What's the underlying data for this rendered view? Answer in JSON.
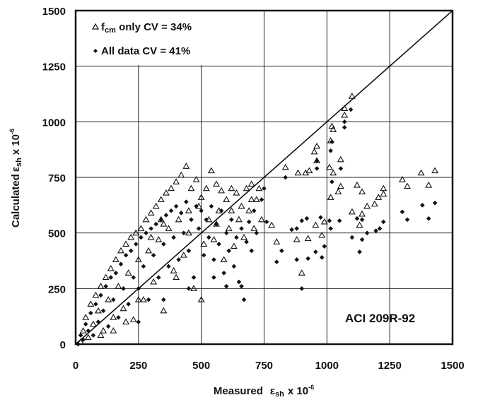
{
  "chart_data": {
    "type": "scatter",
    "title": "",
    "xlabel": {
      "main": "Measured",
      "symbol": "ε",
      "sub": "sh",
      "suffix": "x 10",
      "exp": "-6"
    },
    "ylabel": {
      "main": "Calculated",
      "symbol": "ε",
      "sub": "sh",
      "suffix": "x 10",
      "exp": "-6"
    },
    "xlim": [
      0,
      1500
    ],
    "ylim": [
      0,
      1500
    ],
    "xticks": [
      "0",
      "250",
      "500",
      "750",
      "1000",
      "1250",
      "1500"
    ],
    "yticks": [
      "0",
      "250",
      "500",
      "750",
      "1000",
      "1250",
      "1500"
    ],
    "grid": true,
    "reference_line": "y = x",
    "legend_position": "top-left",
    "legend": [
      {
        "marker": "open-triangle",
        "prefix": "f",
        "sub": "cm",
        "text": " only CV = 34%"
      },
      {
        "marker": "filled-diamond",
        "prefix": "",
        "sub": "",
        "text": "All data CV = 41%"
      }
    ],
    "annotation": "ACI 209R-92",
    "colors": {
      "ink": "#111111",
      "background": "#ffffff"
    },
    "series": [
      {
        "name": "fcm only CV = 34%",
        "marker": "open-triangle",
        "points": [
          [
            20,
            10
          ],
          [
            30,
            60
          ],
          [
            40,
            120
          ],
          [
            50,
            30
          ],
          [
            60,
            180
          ],
          [
            70,
            90
          ],
          [
            80,
            220
          ],
          [
            90,
            150
          ],
          [
            100,
            260
          ],
          [
            110,
            60
          ],
          [
            120,
            300
          ],
          [
            130,
            200
          ],
          [
            140,
            340
          ],
          [
            150,
            120
          ],
          [
            160,
            380
          ],
          [
            170,
            260
          ],
          [
            180,
            420
          ],
          [
            190,
            160
          ],
          [
            200,
            450
          ],
          [
            210,
            320
          ],
          [
            220,
            480
          ],
          [
            230,
            110
          ],
          [
            240,
            500
          ],
          [
            250,
            380
          ],
          [
            260,
            520
          ],
          [
            270,
            200
          ],
          [
            280,
            560
          ],
          [
            290,
            420
          ],
          [
            300,
            590
          ],
          [
            310,
            280
          ],
          [
            320,
            620
          ],
          [
            330,
            470
          ],
          [
            340,
            650
          ],
          [
            350,
            150
          ],
          [
            360,
            680
          ],
          [
            370,
            520
          ],
          [
            380,
            700
          ],
          [
            390,
            330
          ],
          [
            400,
            730
          ],
          [
            410,
            560
          ],
          [
            420,
            760
          ],
          [
            430,
            400
          ],
          [
            440,
            800
          ],
          [
            450,
            600
          ],
          [
            460,
            700
          ],
          [
            470,
            250
          ],
          [
            480,
            740
          ],
          [
            490,
            620
          ],
          [
            500,
            660
          ],
          [
            510,
            450
          ],
          [
            520,
            700
          ],
          [
            530,
            560
          ],
          [
            540,
            780
          ],
          [
            550,
            470
          ],
          [
            560,
            720
          ],
          [
            570,
            600
          ],
          [
            580,
            690
          ],
          [
            590,
            380
          ],
          [
            600,
            650
          ],
          [
            610,
            520
          ],
          [
            620,
            700
          ],
          [
            630,
            440
          ],
          [
            640,
            680
          ],
          [
            650,
            560
          ],
          [
            660,
            620
          ],
          [
            670,
            480
          ],
          [
            680,
            700
          ],
          [
            690,
            600
          ],
          [
            700,
            720
          ],
          [
            710,
            520
          ],
          [
            720,
            650
          ],
          [
            730,
            700
          ],
          [
            740,
            560
          ],
          [
            300,
            480
          ],
          [
            350,
            540
          ],
          [
            250,
            200
          ],
          [
            400,
            300
          ],
          [
            500,
            200
          ],
          [
            200,
            100
          ],
          [
            150,
            60
          ],
          [
            100,
            40
          ],
          [
            340,
            560
          ],
          [
            450,
            500
          ],
          [
            560,
            540
          ],
          [
            620,
            600
          ],
          [
            700,
            650
          ],
          [
            1100,
            1115
          ],
          [
            1070,
            1060
          ],
          [
            1070,
            1030
          ],
          [
            1020,
            980
          ],
          [
            1025,
            965
          ],
          [
            1015,
            915
          ],
          [
            960,
            890
          ],
          [
            950,
            865
          ],
          [
            960,
            825
          ],
          [
            1055,
            830
          ],
          [
            835,
            795
          ],
          [
            885,
            770
          ],
          [
            915,
            770
          ],
          [
            930,
            780
          ],
          [
            1010,
            795
          ],
          [
            1025,
            770
          ],
          [
            1300,
            740
          ],
          [
            1320,
            710
          ],
          [
            1375,
            770
          ],
          [
            1430,
            780
          ],
          [
            1405,
            715
          ],
          [
            1120,
            715
          ],
          [
            1140,
            685
          ],
          [
            1225,
            700
          ],
          [
            1225,
            675
          ],
          [
            1205,
            660
          ],
          [
            1190,
            630
          ],
          [
            1160,
            620
          ],
          [
            1100,
            595
          ],
          [
            1140,
            585
          ],
          [
            1130,
            535
          ],
          [
            1055,
            710
          ],
          [
            1045,
            685
          ],
          [
            1015,
            660
          ],
          [
            955,
            535
          ],
          [
            990,
            550
          ],
          [
            980,
            490
          ],
          [
            925,
            475
          ],
          [
            880,
            470
          ],
          [
            900,
            320
          ],
          [
            800,
            460
          ],
          [
            780,
            535
          ]
        ]
      },
      {
        "name": "All data CV = 41%",
        "marker": "filled-diamond",
        "points": [
          [
            10,
            0
          ],
          [
            20,
            40
          ],
          [
            30,
            20
          ],
          [
            40,
            90
          ],
          [
            50,
            60
          ],
          [
            60,
            140
          ],
          [
            70,
            40
          ],
          [
            80,
            180
          ],
          [
            90,
            100
          ],
          [
            100,
            220
          ],
          [
            110,
            150
          ],
          [
            120,
            260
          ],
          [
            130,
            80
          ],
          [
            140,
            300
          ],
          [
            150,
            200
          ],
          [
            160,
            320
          ],
          [
            170,
            120
          ],
          [
            180,
            360
          ],
          [
            190,
            250
          ],
          [
            200,
            400
          ],
          [
            210,
            180
          ],
          [
            220,
            420
          ],
          [
            230,
            300
          ],
          [
            240,
            450
          ],
          [
            250,
            250
          ],
          [
            260,
            480
          ],
          [
            270,
            350
          ],
          [
            280,
            500
          ],
          [
            290,
            200
          ],
          [
            300,
            520
          ],
          [
            310,
            400
          ],
          [
            320,
            540
          ],
          [
            330,
            300
          ],
          [
            340,
            560
          ],
          [
            350,
            450
          ],
          [
            360,
            580
          ],
          [
            370,
            350
          ],
          [
            380,
            600
          ],
          [
            390,
            480
          ],
          [
            400,
            620
          ],
          [
            410,
            380
          ],
          [
            420,
            590
          ],
          [
            430,
            500
          ],
          [
            440,
            640
          ],
          [
            450,
            420
          ],
          [
            460,
            560
          ],
          [
            470,
            300
          ],
          [
            480,
            620
          ],
          [
            490,
            520
          ],
          [
            500,
            600
          ],
          [
            510,
            400
          ],
          [
            520,
            560
          ],
          [
            530,
            480
          ],
          [
            540,
            620
          ],
          [
            550,
            380
          ],
          [
            560,
            540
          ],
          [
            570,
            450
          ],
          [
            580,
            600
          ],
          [
            590,
            320
          ],
          [
            600,
            500
          ],
          [
            610,
            420
          ],
          [
            620,
            560
          ],
          [
            630,
            350
          ],
          [
            640,
            480
          ],
          [
            650,
            280
          ],
          [
            660,
            520
          ],
          [
            670,
            200
          ],
          [
            680,
            460
          ],
          [
            690,
            550
          ],
          [
            700,
            420
          ],
          [
            710,
            600
          ],
          [
            720,
            500
          ],
          [
            740,
            650
          ],
          [
            750,
            700
          ],
          [
            760,
            550
          ],
          [
            250,
            100
          ],
          [
            350,
            200
          ],
          [
            450,
            250
          ],
          [
            550,
            300
          ],
          [
            600,
            260
          ],
          [
            660,
            260
          ],
          [
            1095,
            1055
          ],
          [
            1070,
            1000
          ],
          [
            1070,
            975
          ],
          [
            1020,
            910
          ],
          [
            1015,
            870
          ],
          [
            960,
            825
          ],
          [
            960,
            790
          ],
          [
            1055,
            790
          ],
          [
            835,
            750
          ],
          [
            1300,
            595
          ],
          [
            1320,
            560
          ],
          [
            1380,
            625
          ],
          [
            1430,
            635
          ],
          [
            1405,
            565
          ],
          [
            1225,
            550
          ],
          [
            1210,
            520
          ],
          [
            1195,
            510
          ],
          [
            1160,
            500
          ],
          [
            1120,
            565
          ],
          [
            1140,
            560
          ],
          [
            1100,
            480
          ],
          [
            1140,
            470
          ],
          [
            1130,
            415
          ],
          [
            1050,
            555
          ],
          [
            1010,
            555
          ],
          [
            1015,
            520
          ],
          [
            975,
            570
          ],
          [
            990,
            440
          ],
          [
            980,
            390
          ],
          [
            955,
            415
          ],
          [
            925,
            385
          ],
          [
            880,
            380
          ],
          [
            900,
            250
          ],
          [
            800,
            370
          ],
          [
            820,
            420
          ],
          [
            920,
            565
          ],
          [
            860,
            515
          ],
          [
            880,
            520
          ],
          [
            900,
            555
          ],
          [
            1020,
            730
          ]
        ]
      }
    ]
  }
}
